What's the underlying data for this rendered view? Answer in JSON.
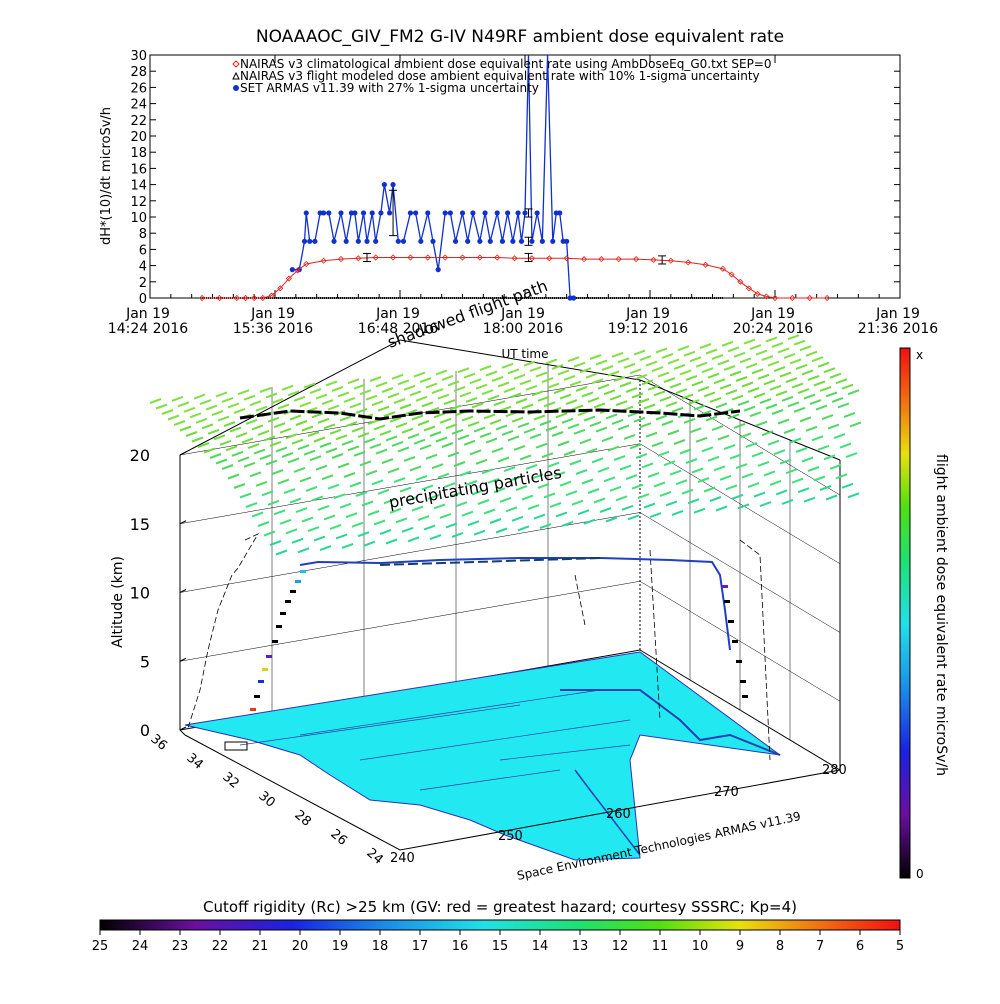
{
  "chart_data": [
    {
      "type": "line",
      "title": "NOAAAOC_GIV_FM2 G-IV    N49RF   ambient dose equivalent rate",
      "ylabel": "dH*(10)/dt microSv/h",
      "xlabel": "UT time",
      "ylim": [
        0,
        30
      ],
      "y_ticks": [
        0,
        2,
        4,
        6,
        8,
        10,
        12,
        14,
        16,
        18,
        20,
        22,
        24,
        26,
        28,
        30
      ],
      "x_tick_labels": [
        {
          "date": "Jan 19",
          "time": "14:24 2016"
        },
        {
          "date": "Jan 19",
          "time": "15:36 2016"
        },
        {
          "date": "Jan 19",
          "time": "16:48 2016"
        },
        {
          "date": "Jan 19",
          "time": "18:00 2016"
        },
        {
          "date": "Jan 19",
          "time": "19:12 2016"
        },
        {
          "date": "Jan 19",
          "time": "20:24 2016"
        },
        {
          "date": "Jan 19",
          "time": "21:36 2016"
        }
      ],
      "legend_position": "top-center",
      "series": [
        {
          "name": "NAIRAS v3 climatological ambient dose equivalent rate using AmbDoseEq_G0.txt SEP=0",
          "color": "#e0231b",
          "marker": "diamond",
          "x_minutes_from_1424": [
            30,
            40,
            50,
            55,
            60,
            65,
            70,
            75,
            80,
            85,
            90,
            100,
            110,
            120,
            130,
            140,
            150,
            160,
            170,
            180,
            190,
            200,
            210,
            220,
            230,
            240,
            250,
            260,
            270,
            280,
            290,
            300,
            310,
            320,
            330,
            335,
            340,
            345,
            350,
            355,
            360,
            370,
            380,
            390
          ],
          "values": [
            0,
            0,
            0,
            0,
            0,
            0,
            0.3,
            1.2,
            2.4,
            3.4,
            4.2,
            4.6,
            4.8,
            4.9,
            5.0,
            5.0,
            5.0,
            5.0,
            5.0,
            5.0,
            5.0,
            5.0,
            4.9,
            4.9,
            4.9,
            4.9,
            4.8,
            4.8,
            4.8,
            4.8,
            4.7,
            4.6,
            4.4,
            4.1,
            3.6,
            2.9,
            2.0,
            1.2,
            0.5,
            0.2,
            0,
            0,
            0,
            0
          ]
        },
        {
          "name": "NAIRAS v3 flight modeled dose ambient equivalent rate with 10% 1-sigma uncertainty",
          "color": "#000000",
          "marker": "triangle",
          "x_minutes_from_1424": [
            30,
            330
          ],
          "values": [
            0,
            0
          ]
        },
        {
          "name": "SET ARMAS v11.39 with 27% 1-sigma uncertainty",
          "color": "#1030d0",
          "marker": "circle",
          "x_minutes_from_1424": [
            82,
            86,
            89,
            90,
            92,
            95,
            98,
            100,
            103,
            106,
            110,
            113,
            116,
            118,
            120,
            123,
            125,
            128,
            130,
            133,
            135,
            138,
            140,
            143,
            146,
            150,
            153,
            156,
            160,
            163,
            166,
            170,
            173,
            176,
            180,
            183,
            186,
            190,
            193,
            196,
            200,
            203,
            206,
            209,
            212,
            214,
            216,
            218,
            220,
            223,
            226,
            229,
            232,
            234,
            236,
            238,
            240,
            242,
            244
          ],
          "values": [
            3.5,
            3.5,
            7,
            10.5,
            7,
            7,
            10.5,
            10.5,
            10.5,
            7,
            10.5,
            7,
            10.5,
            10.5,
            7,
            10.5,
            7,
            10.5,
            7,
            10.5,
            14,
            10.5,
            14,
            7,
            7,
            10.5,
            10.5,
            7,
            10.5,
            7,
            3.5,
            10.5,
            10.5,
            7,
            10.5,
            7,
            10.5,
            7,
            10.5,
            7,
            10.5,
            7,
            10.5,
            7,
            10.5,
            7,
            10.5,
            30,
            7,
            10.5,
            7,
            30,
            7,
            10.5,
            10.5,
            7,
            7,
            0,
            0
          ]
        }
      ]
    },
    {
      "type": "scatter",
      "subtitle_upper": "shadowed flight path",
      "annotation": "precipitating particles",
      "zlabel": "Altitude (km)",
      "z_ticks": [
        0,
        5,
        10,
        15,
        20
      ],
      "lat_ticks": [
        36,
        34,
        32,
        30,
        28,
        26,
        24
      ],
      "lon_ticks": [
        240,
        250,
        260,
        270,
        280
      ],
      "credit": "Space Environment Technologies ARMAS v11.39",
      "colorbar_label": "flight ambient dose equivalent rate microSv/h",
      "colorbar_max": "x",
      "colorbar_min": "0",
      "map_color": "#22e8f2"
    }
  ],
  "bottom_colorbar": {
    "title": "Cutoff rigidity (Rc) >25 km (GV: red = greatest hazard; courtesy SSSRC; Kp=4)",
    "ticks": [
      "25",
      "24",
      "23",
      "22",
      "21",
      "20",
      "19",
      "18",
      "17",
      "16",
      "15",
      "14",
      "13",
      "12",
      "11",
      "10",
      "9",
      "8",
      "7",
      "6",
      "5"
    ]
  }
}
